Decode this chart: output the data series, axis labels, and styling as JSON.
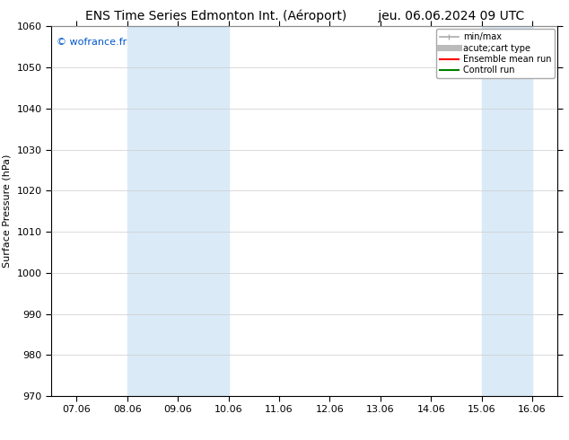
{
  "title_left": "ENS Time Series Edmonton Int. (Aéroport)",
  "title_right": "jeu. 06.06.2024 09 UTC",
  "ylabel": "Surface Pressure (hPa)",
  "ylim": [
    970,
    1060
  ],
  "yticks": [
    970,
    980,
    990,
    1000,
    1010,
    1020,
    1030,
    1040,
    1050,
    1060
  ],
  "xtick_labels": [
    "07.06",
    "08.06",
    "09.06",
    "10.06",
    "11.06",
    "12.06",
    "13.06",
    "14.06",
    "15.06",
    "16.06"
  ],
  "xtick_positions": [
    0,
    1,
    2,
    3,
    4,
    5,
    6,
    7,
    8,
    9
  ],
  "xlim": [
    -0.5,
    9.5
  ],
  "shade_regions": [
    {
      "x_start": 1.0,
      "x_end": 3.0,
      "color": "#daeaf7"
    },
    {
      "x_start": 8.0,
      "x_end": 9.0,
      "color": "#daeaf7"
    }
  ],
  "watermark": "© wofrance.fr",
  "watermark_color": "#0055cc",
  "background_color": "#ffffff",
  "plot_bg_color": "#ffffff",
  "legend_items": [
    {
      "label": "min/max",
      "color": "#aaaaaa",
      "lw": 1.2
    },
    {
      "label": "acute;cart type",
      "color": "#bbbbbb",
      "lw": 5
    },
    {
      "label": "Ensemble mean run",
      "color": "#ff0000",
      "lw": 1.5
    },
    {
      "label": "Controll run",
      "color": "#008000",
      "lw": 1.5
    }
  ],
  "grid_color": "#cccccc",
  "title_fontsize": 10,
  "axis_fontsize": 8,
  "tick_fontsize": 8
}
